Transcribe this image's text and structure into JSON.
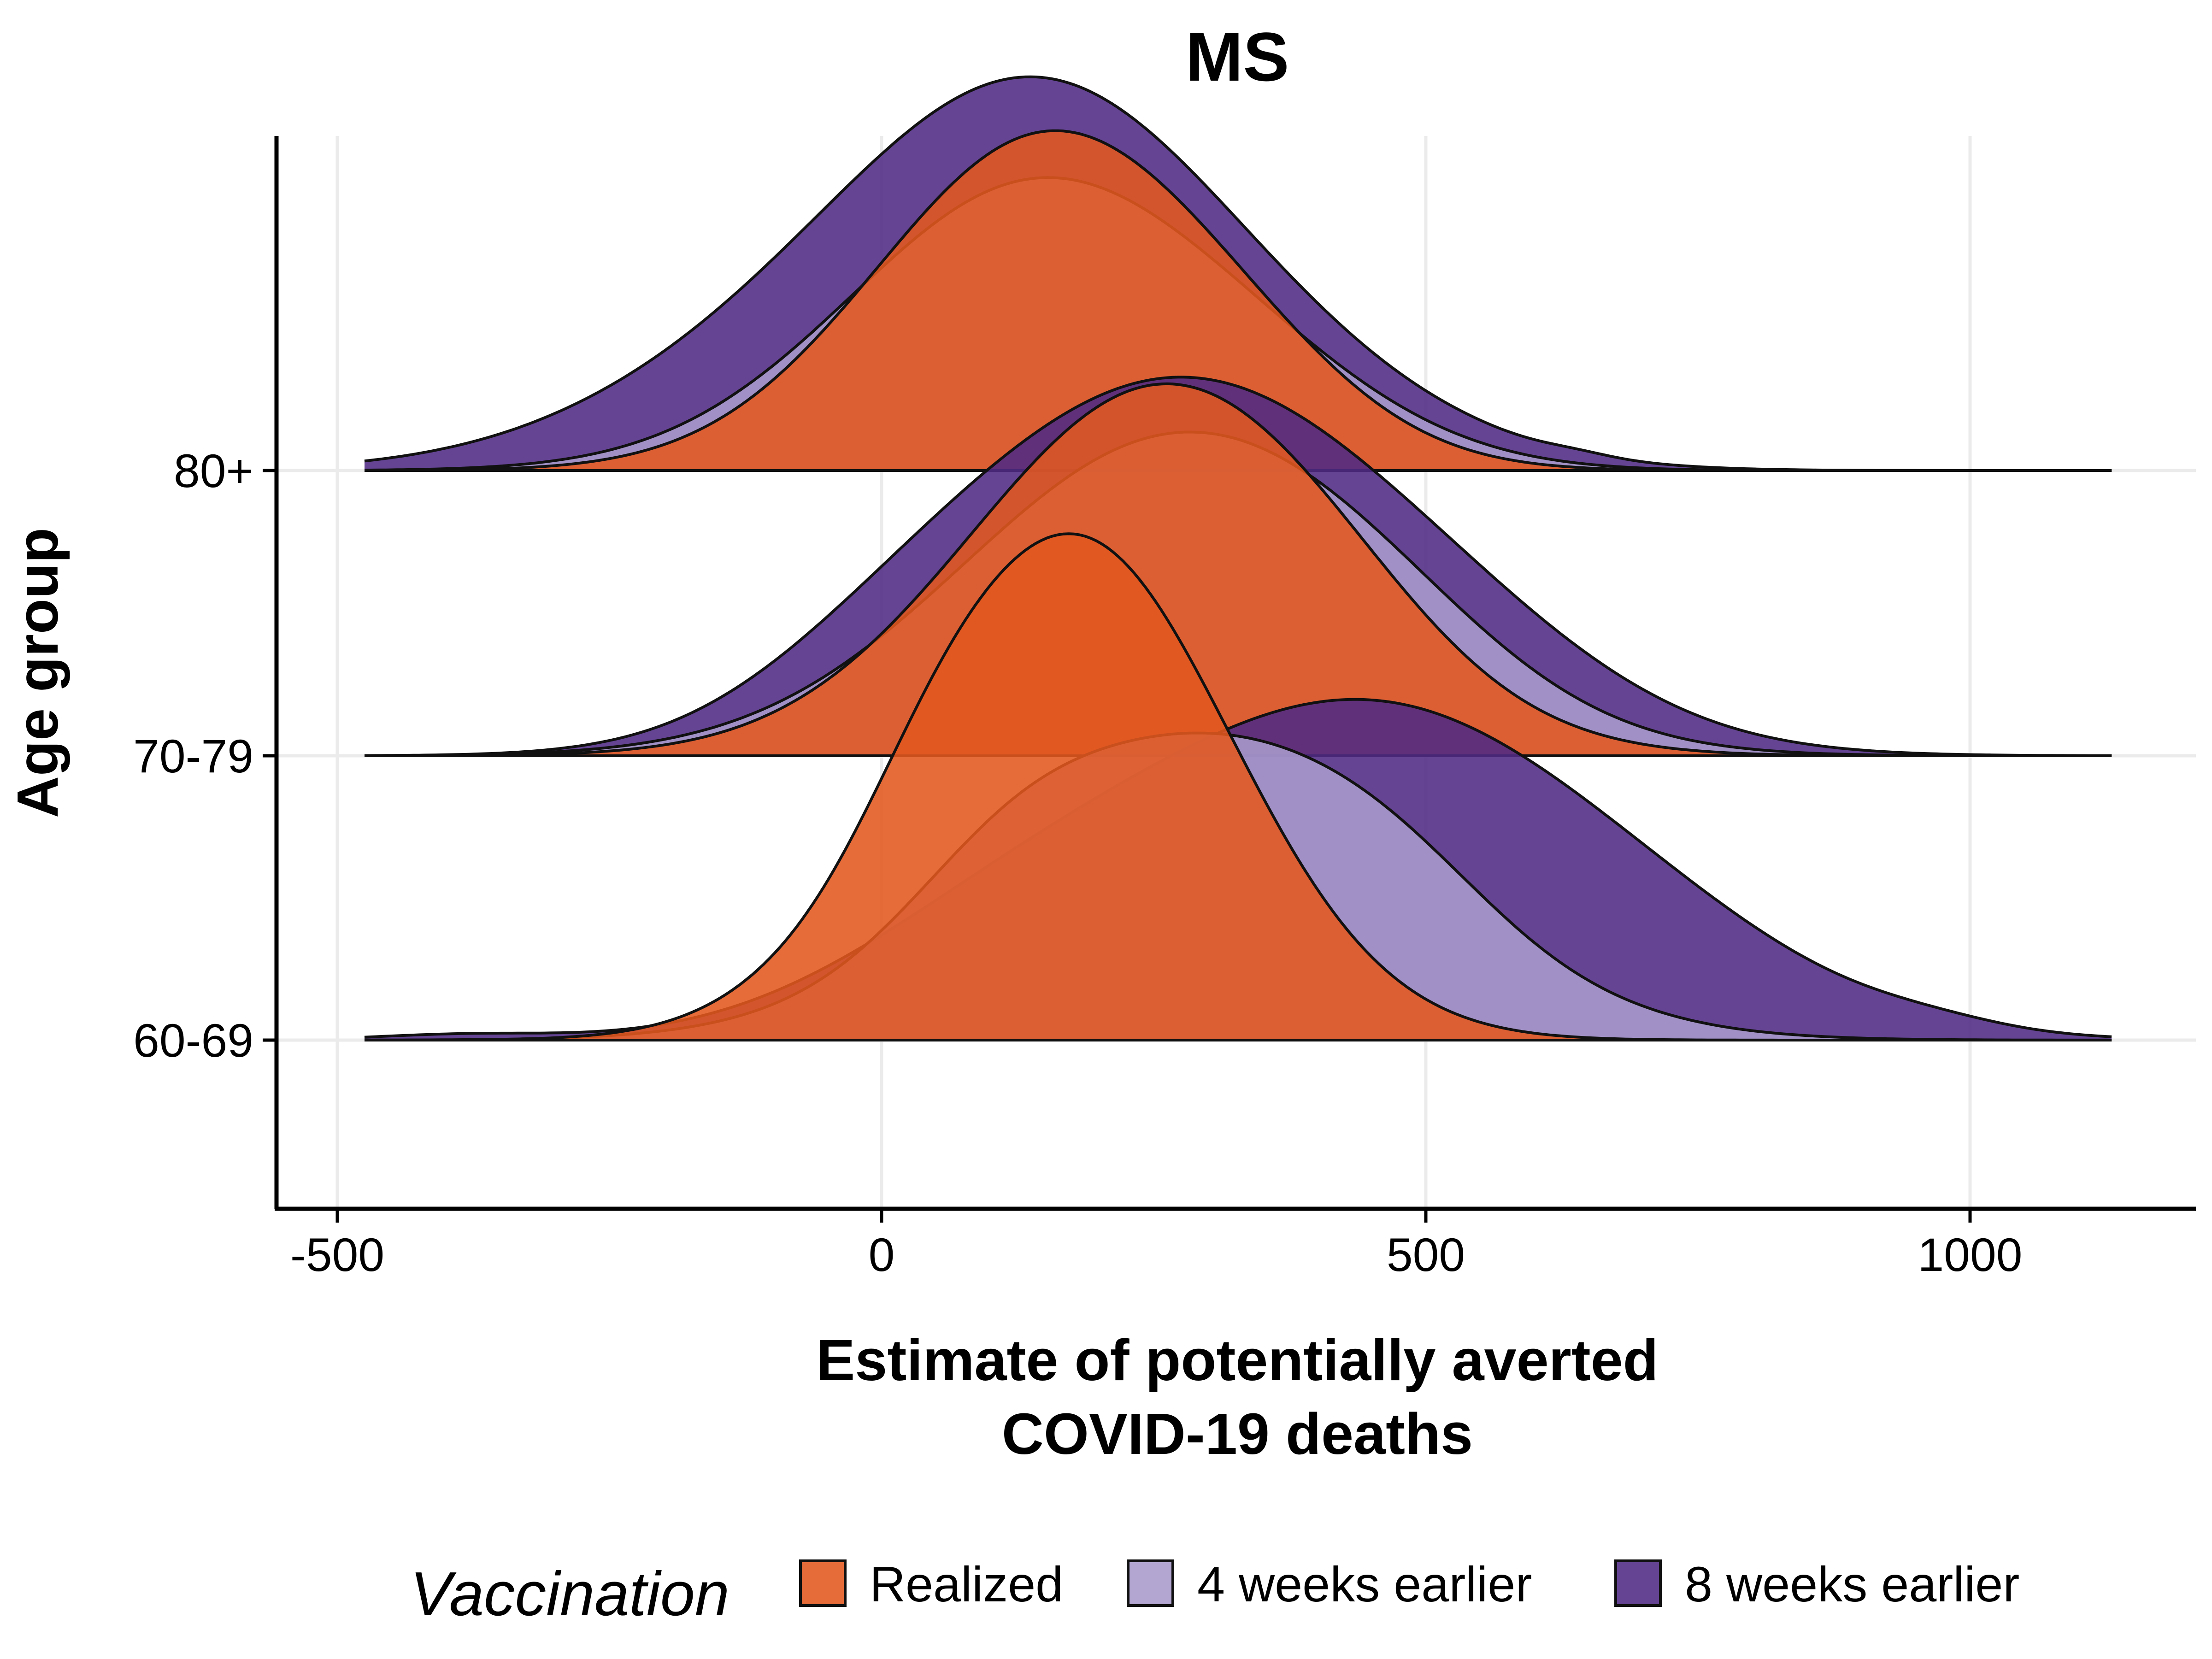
{
  "chart_data": {
    "type": "ridgeline",
    "title": "MS",
    "xlabel": [
      "Estimate of potentially averted",
      "COVID-19 deaths"
    ],
    "ylabel": "Age group",
    "xlim": [
      -500,
      1150
    ],
    "x_ticks": [
      -500,
      0,
      500,
      1000
    ],
    "x_tick_labels": [
      "-500",
      "0",
      "500",
      "1000"
    ],
    "categories": [
      "60-69",
      "70-79",
      "80+"
    ],
    "grid": true,
    "legend": {
      "title": "Vaccination",
      "position": "bottom",
      "entries": [
        "Realized",
        "4 weeks earlier",
        "8 weeks earlier"
      ]
    },
    "colors": {
      "Realized": "#e2581f",
      "4 weeks earlier": "#a89bcc",
      "8 weeks earlier": "#4e2a84"
    },
    "range": [
      -475,
      1130
    ],
    "series": [
      {
        "group": "80+",
        "scenario": "8 weeks earlier",
        "peaks": [
          [
            170,
            0.78,
            170
          ],
          [
            75,
            0.6,
            200
          ],
          [
            -150,
            0.12,
            170
          ],
          [
            410,
            0.12,
            150
          ],
          [
            640,
            0.01,
            30
          ]
        ]
      },
      {
        "group": "80+",
        "scenario": "4 weeks earlier",
        "peaks": [
          [
            140,
            1.0,
            170
          ],
          [
            360,
            0.13,
            130
          ]
        ]
      },
      {
        "group": "80+",
        "scenario": "Realized",
        "peaks": [
          [
            150,
            1.17,
            155
          ],
          [
            340,
            0.12,
            110
          ]
        ]
      },
      {
        "group": "70-79",
        "scenario": "8 weeks earlier",
        "peaks": [
          [
            255,
            0.84,
            190
          ],
          [
            370,
            0.48,
            200
          ],
          [
            60,
            0.2,
            140
          ],
          [
            560,
            0.1,
            130
          ],
          [
            -30,
            0.06,
            110
          ]
        ]
      },
      {
        "group": "70-79",
        "scenario": "4 weeks earlier",
        "peaks": [
          [
            260,
            1.08,
            190
          ],
          [
            450,
            0.16,
            130
          ]
        ]
      },
      {
        "group": "70-79",
        "scenario": "Realized",
        "peaks": [
          [
            250,
            1.27,
            170
          ],
          [
            400,
            0.1,
            110
          ]
        ]
      },
      {
        "group": "60-69",
        "scenario": "8 weeks earlier",
        "peaks": [
          [
            370,
            0.72,
            220
          ],
          [
            510,
            0.5,
            200
          ],
          [
            100,
            0.22,
            150
          ],
          [
            720,
            0.14,
            160
          ],
          [
            -380,
            0.02,
            80
          ],
          [
            970,
            0.02,
            60
          ]
        ]
      },
      {
        "group": "60-69",
        "scenario": "4 weeks earlier",
        "peaks": [
          [
            300,
            1.05,
            190
          ],
          [
            110,
            0.18,
            90
          ],
          [
            480,
            0.1,
            90
          ]
        ]
      },
      {
        "group": "60-69",
        "scenario": "Realized",
        "peaks": [
          [
            175,
            1.78,
            145
          ],
          [
            40,
            0.08,
            60
          ]
        ]
      }
    ]
  }
}
